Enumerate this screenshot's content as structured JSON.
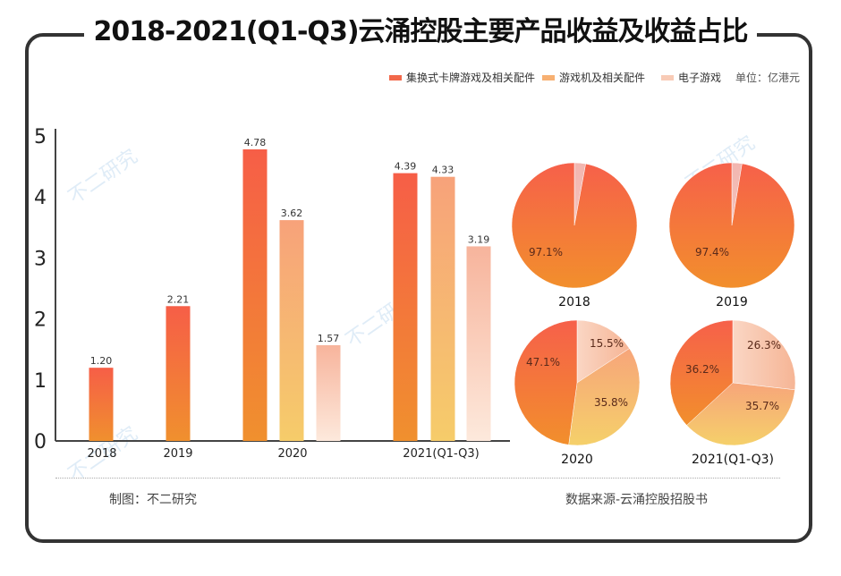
{
  "title": "2018-2021(Q1-Q3)云涌控股主要产品收益及收益占比",
  "legend": [
    {
      "label": "集换式卡牌游戏及相关配件",
      "color": "#f2684a"
    },
    {
      "label": "游戏机及相关配件",
      "color": "#f7b072"
    },
    {
      "label": "电子游戏",
      "color": "#f8cbb6"
    }
  ],
  "unit": "单位：亿港元",
  "footer": {
    "left": "制图：不二研究",
    "right": "数据来源-云涌控股招股书"
  },
  "watermark": "不二研究",
  "chart_data": [
    {
      "type": "bar",
      "title": "主要产品收益",
      "categories": [
        "2018",
        "2019",
        "2020",
        "2021(Q1-Q3)"
      ],
      "series": [
        {
          "name": "集换式卡牌游戏及相关配件",
          "values": [
            1.2,
            2.21,
            4.78,
            4.39
          ]
        },
        {
          "name": "游戏机及相关配件",
          "values": [
            null,
            null,
            3.62,
            4.33
          ]
        },
        {
          "name": "电子游戏",
          "values": [
            null,
            null,
            1.57,
            3.19
          ]
        }
      ],
      "ylim": [
        0,
        5
      ],
      "yticks": [
        "0",
        "1",
        "2",
        "3",
        "4",
        "5"
      ],
      "xlabel": "",
      "ylabel": "",
      "grid": false
    },
    {
      "type": "pie",
      "title": "收益占比",
      "pies": [
        {
          "label": "2018",
          "slices": [
            {
              "name": "集换式卡牌游戏及相关配件",
              "value": 97.1,
              "text": "97.1%"
            },
            {
              "name": "电子游戏",
              "value": 2.9,
              "text": ""
            }
          ]
        },
        {
          "label": "2019",
          "slices": [
            {
              "name": "集换式卡牌游戏及相关配件",
              "value": 97.4,
              "text": "97.4%"
            },
            {
              "name": "电子游戏",
              "value": 2.6,
              "text": ""
            }
          ]
        },
        {
          "label": "2020",
          "slices": [
            {
              "name": "电子游戏",
              "value": 15.5,
              "text": "15.5%"
            },
            {
              "name": "游戏机及相关配件",
              "value": 35.8,
              "text": "35.8%"
            },
            {
              "name": "集换式卡牌游戏及相关配件",
              "value": 47.1,
              "text": "47.1%"
            }
          ]
        },
        {
          "label": "2021(Q1-Q3)",
          "slices": [
            {
              "name": "电子游戏",
              "value": 26.3,
              "text": "26.3%"
            },
            {
              "name": "游戏机及相关配件",
              "value": 35.7,
              "text": "35.7%"
            },
            {
              "name": "集换式卡牌游戏及相关配件",
              "value": 36.2,
              "text": "36.2%"
            }
          ]
        }
      ]
    }
  ]
}
